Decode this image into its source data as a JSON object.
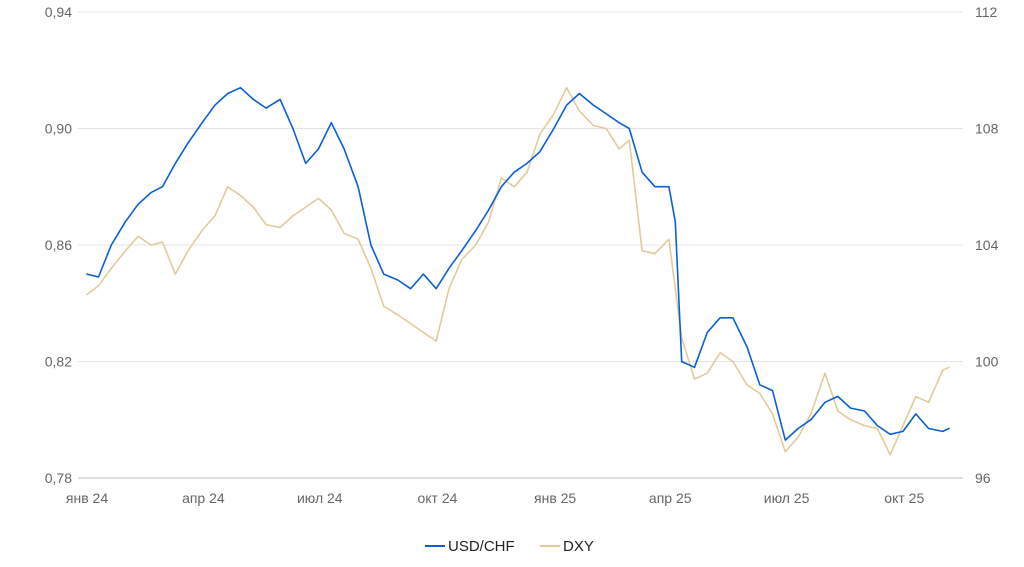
{
  "chart_data": {
    "type": "line",
    "x_tick_labels": [
      "янв 24",
      "апр 24",
      "июл 24",
      "окт 24",
      "янв 25",
      "апр 25",
      "июл 25",
      "окт 25"
    ],
    "x_range": [
      "2024-01",
      "2025-11"
    ],
    "y_left": {
      "ticks": [
        "0,94",
        "0,90",
        "0,86",
        "0,82",
        "0,78"
      ],
      "range": [
        0.78,
        0.94
      ]
    },
    "y_right": {
      "ticks": [
        "112",
        "108",
        "104",
        "100",
        "96"
      ],
      "range": [
        96,
        112
      ]
    },
    "grid": true,
    "legend_position": "bottom-center",
    "series": [
      {
        "name": "USD/CHF",
        "axis": "left",
        "color": "#0a5fd6",
        "points": [
          [
            "2024-01-01",
            0.85
          ],
          [
            "2024-01-10",
            0.849
          ],
          [
            "2024-01-20",
            0.86
          ],
          [
            "2024-01-31",
            0.868
          ],
          [
            "2024-02-10",
            0.874
          ],
          [
            "2024-02-20",
            0.878
          ],
          [
            "2024-02-29",
            0.88
          ],
          [
            "2024-03-10",
            0.888
          ],
          [
            "2024-03-20",
            0.895
          ],
          [
            "2024-03-31",
            0.902
          ],
          [
            "2024-04-10",
            0.908
          ],
          [
            "2024-04-20",
            0.912
          ],
          [
            "2024-04-30",
            0.914
          ],
          [
            "2024-05-10",
            0.91
          ],
          [
            "2024-05-20",
            0.907
          ],
          [
            "2024-05-31",
            0.91
          ],
          [
            "2024-06-10",
            0.9
          ],
          [
            "2024-06-20",
            0.888
          ],
          [
            "2024-06-30",
            0.893
          ],
          [
            "2024-07-10",
            0.902
          ],
          [
            "2024-07-20",
            0.893
          ],
          [
            "2024-07-31",
            0.88
          ],
          [
            "2024-08-10",
            0.86
          ],
          [
            "2024-08-20",
            0.85
          ],
          [
            "2024-08-31",
            0.848
          ],
          [
            "2024-09-10",
            0.845
          ],
          [
            "2024-09-20",
            0.85
          ],
          [
            "2024-09-30",
            0.845
          ],
          [
            "2024-10-10",
            0.852
          ],
          [
            "2024-10-20",
            0.858
          ],
          [
            "2024-10-31",
            0.865
          ],
          [
            "2024-11-10",
            0.872
          ],
          [
            "2024-11-20",
            0.88
          ],
          [
            "2024-11-30",
            0.885
          ],
          [
            "2024-12-10",
            0.888
          ],
          [
            "2024-12-20",
            0.892
          ],
          [
            "2024-12-31",
            0.9
          ],
          [
            "2025-01-10",
            0.908
          ],
          [
            "2025-01-20",
            0.912
          ],
          [
            "2025-01-31",
            0.908
          ],
          [
            "2025-02-10",
            0.905
          ],
          [
            "2025-02-20",
            0.902
          ],
          [
            "2025-02-28",
            0.9
          ],
          [
            "2025-03-10",
            0.885
          ],
          [
            "2025-03-20",
            0.88
          ],
          [
            "2025-03-31",
            0.88
          ],
          [
            "2025-04-05",
            0.868
          ],
          [
            "2025-04-10",
            0.82
          ],
          [
            "2025-04-20",
            0.818
          ],
          [
            "2025-04-30",
            0.83
          ],
          [
            "2025-05-10",
            0.835
          ],
          [
            "2025-05-20",
            0.835
          ],
          [
            "2025-05-31",
            0.825
          ],
          [
            "2025-06-10",
            0.812
          ],
          [
            "2025-06-20",
            0.81
          ],
          [
            "2025-06-30",
            0.793
          ],
          [
            "2025-07-10",
            0.797
          ],
          [
            "2025-07-20",
            0.8
          ],
          [
            "2025-07-31",
            0.806
          ],
          [
            "2025-08-10",
            0.808
          ],
          [
            "2025-08-20",
            0.804
          ],
          [
            "2025-08-31",
            0.803
          ],
          [
            "2025-09-10",
            0.798
          ],
          [
            "2025-09-20",
            0.795
          ],
          [
            "2025-09-30",
            0.796
          ],
          [
            "2025-10-10",
            0.802
          ],
          [
            "2025-10-20",
            0.797
          ],
          [
            "2025-10-31",
            0.796
          ],
          [
            "2025-11-05",
            0.797
          ]
        ]
      },
      {
        "name": "DXY",
        "axis": "right",
        "color": "#e2cb9b",
        "points": [
          [
            "2024-01-01",
            102.3
          ],
          [
            "2024-01-10",
            102.6
          ],
          [
            "2024-01-20",
            103.2
          ],
          [
            "2024-01-31",
            103.8
          ],
          [
            "2024-02-10",
            104.3
          ],
          [
            "2024-02-20",
            104.0
          ],
          [
            "2024-02-29",
            104.1
          ],
          [
            "2024-03-10",
            103.0
          ],
          [
            "2024-03-20",
            103.8
          ],
          [
            "2024-03-31",
            104.5
          ],
          [
            "2024-04-10",
            105.0
          ],
          [
            "2024-04-20",
            106.0
          ],
          [
            "2024-04-30",
            105.7
          ],
          [
            "2024-05-10",
            105.3
          ],
          [
            "2024-05-20",
            104.7
          ],
          [
            "2024-05-31",
            104.6
          ],
          [
            "2024-06-10",
            105.0
          ],
          [
            "2024-06-20",
            105.3
          ],
          [
            "2024-06-30",
            105.6
          ],
          [
            "2024-07-10",
            105.2
          ],
          [
            "2024-07-20",
            104.4
          ],
          [
            "2024-07-31",
            104.2
          ],
          [
            "2024-08-10",
            103.2
          ],
          [
            "2024-08-20",
            101.9
          ],
          [
            "2024-08-31",
            101.6
          ],
          [
            "2024-09-10",
            101.3
          ],
          [
            "2024-09-20",
            101.0
          ],
          [
            "2024-09-30",
            100.7
          ],
          [
            "2024-10-10",
            102.5
          ],
          [
            "2024-10-20",
            103.5
          ],
          [
            "2024-10-31",
            104.0
          ],
          [
            "2024-11-10",
            104.8
          ],
          [
            "2024-11-20",
            106.3
          ],
          [
            "2024-11-30",
            106.0
          ],
          [
            "2024-12-10",
            106.5
          ],
          [
            "2024-12-20",
            107.8
          ],
          [
            "2024-12-31",
            108.5
          ],
          [
            "2025-01-10",
            109.4
          ],
          [
            "2025-01-20",
            108.6
          ],
          [
            "2025-01-31",
            108.1
          ],
          [
            "2025-02-10",
            108.0
          ],
          [
            "2025-02-20",
            107.3
          ],
          [
            "2025-02-28",
            107.6
          ],
          [
            "2025-03-10",
            103.8
          ],
          [
            "2025-03-20",
            103.7
          ],
          [
            "2025-03-31",
            104.2
          ],
          [
            "2025-04-10",
            100.8
          ],
          [
            "2025-04-20",
            99.4
          ],
          [
            "2025-04-30",
            99.6
          ],
          [
            "2025-05-10",
            100.3
          ],
          [
            "2025-05-20",
            100.0
          ],
          [
            "2025-05-31",
            99.2
          ],
          [
            "2025-06-10",
            98.9
          ],
          [
            "2025-06-20",
            98.2
          ],
          [
            "2025-06-30",
            96.9
          ],
          [
            "2025-07-10",
            97.4
          ],
          [
            "2025-07-20",
            98.2
          ],
          [
            "2025-07-31",
            99.6
          ],
          [
            "2025-08-10",
            98.3
          ],
          [
            "2025-08-20",
            98.0
          ],
          [
            "2025-08-31",
            97.8
          ],
          [
            "2025-09-10",
            97.7
          ],
          [
            "2025-09-20",
            96.8
          ],
          [
            "2025-09-30",
            97.8
          ],
          [
            "2025-10-10",
            98.8
          ],
          [
            "2025-10-20",
            98.6
          ],
          [
            "2025-10-31",
            99.7
          ],
          [
            "2025-11-05",
            99.8
          ]
        ]
      }
    ]
  }
}
